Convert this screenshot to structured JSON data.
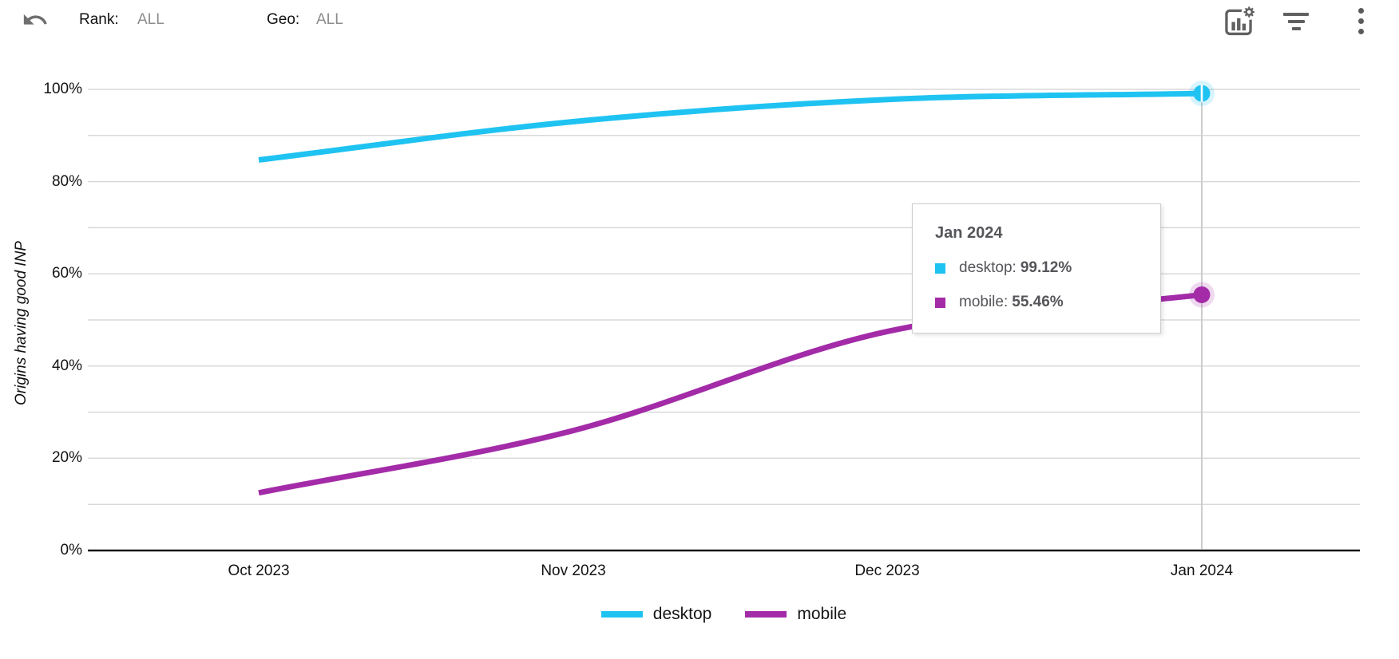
{
  "toolbar": {
    "rank": {
      "label": "Rank:",
      "value": "ALL"
    },
    "geo": {
      "label": "Geo:",
      "value": "ALL"
    },
    "icons": {
      "undo": "undo-curved-arrow",
      "chart_settings": "bar-chart-with-gear",
      "filter": "filter-lines",
      "menu": "vertical-ellipsis"
    }
  },
  "chart_data": {
    "type": "line",
    "title": "",
    "ylabel": "Origins having good INP",
    "xlabel": "",
    "categories": [
      "Oct 2023",
      "Nov 2023",
      "Dec 2023",
      "Jan 2024"
    ],
    "series": [
      {
        "name": "desktop",
        "color": "#1fc3f2",
        "values": [
          84.7,
          93.0,
          97.8,
          99.12
        ]
      },
      {
        "name": "mobile",
        "color": "#a32ba8",
        "values": [
          12.5,
          26.0,
          47.5,
          55.46
        ]
      }
    ],
    "ylim": [
      0,
      100
    ],
    "grid_step_pct": 10,
    "ytick_labels": [
      "0%",
      "20%",
      "40%",
      "60%",
      "80%",
      "100%"
    ],
    "grid": true,
    "legend_position": "bottom",
    "highlighted_category": "Jan 2024",
    "crosshair_color": "#cccccc",
    "grid_color": "#d9d9d9",
    "axis_color": "#161616"
  },
  "tooltip": {
    "title": "Jan 2024",
    "items": [
      {
        "label": "desktop:",
        "value": "99.12%",
        "color": "#1fc3f2"
      },
      {
        "label": "mobile:",
        "value": "55.46%",
        "color": "#a32ba8"
      }
    ]
  },
  "legend": {
    "items": [
      {
        "label": "desktop",
        "color": "#1fc3f2"
      },
      {
        "label": "mobile",
        "color": "#a32ba8"
      }
    ]
  }
}
